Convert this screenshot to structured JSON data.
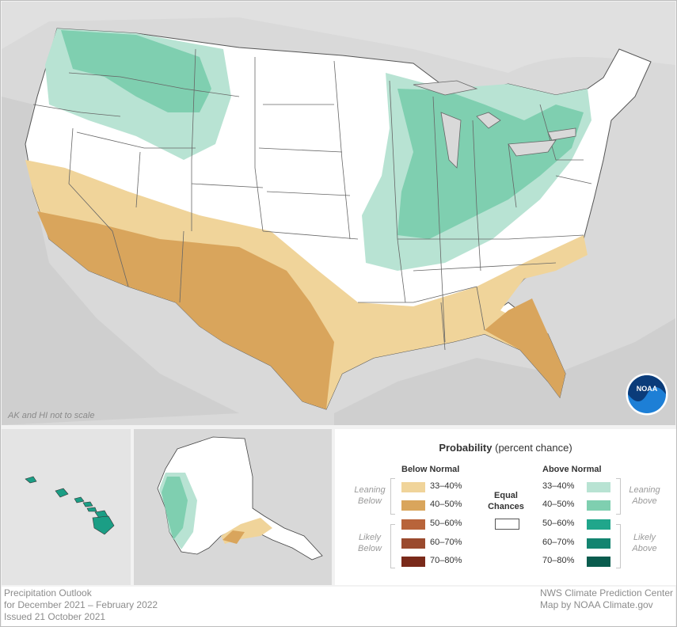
{
  "map": {
    "scale_note": "AK and HI not to scale",
    "logo_text": "NOAA",
    "colors": {
      "background_land": "#dcdcdc",
      "equal_chances": "#ffffff",
      "below_33_40": "#f0d49a",
      "below_40_50": "#d9a55c",
      "above_33_40": "#b8e3d3",
      "above_40_50": "#7fcfb0",
      "hawaii": "#1b9e85"
    }
  },
  "legend": {
    "title_bold": "Probability",
    "title_rest": "(percent chance)",
    "below_header": "Below Normal",
    "above_header": "Above Normal",
    "equal_label_1": "Equal",
    "equal_label_2": "Chances",
    "leaning_below_1": "Leaning",
    "leaning_below_2": "Below",
    "likely_below_1": "Likely",
    "likely_below_2": "Below",
    "leaning_above_1": "Leaning",
    "leaning_above_2": "Above",
    "likely_above_1": "Likely",
    "likely_above_2": "Above",
    "below": [
      {
        "label": "33–40%",
        "color": "#f0d49a"
      },
      {
        "label": "40–50%",
        "color": "#d9a55c"
      },
      {
        "label": "50–60%",
        "color": "#b8643a"
      },
      {
        "label": "60–70%",
        "color": "#9a4a2e"
      },
      {
        "label": "70–80%",
        "color": "#7a2a1a"
      }
    ],
    "above": [
      {
        "label": "33–40%",
        "color": "#b8e3d3"
      },
      {
        "label": "40–50%",
        "color": "#7fcfb0"
      },
      {
        "label": "50–60%",
        "color": "#20a68b"
      },
      {
        "label": "60–70%",
        "color": "#138470"
      },
      {
        "label": "70–80%",
        "color": "#0a5c4e"
      }
    ]
  },
  "footer": {
    "left_line1": "Precipitation Outlook",
    "left_line2": "for December 2021 – February 2022",
    "left_line3": "Issued 21 October 2021",
    "right_line1": "NWS Climate Prediction Center",
    "right_line2": "Map by NOAA Climate.gov"
  }
}
